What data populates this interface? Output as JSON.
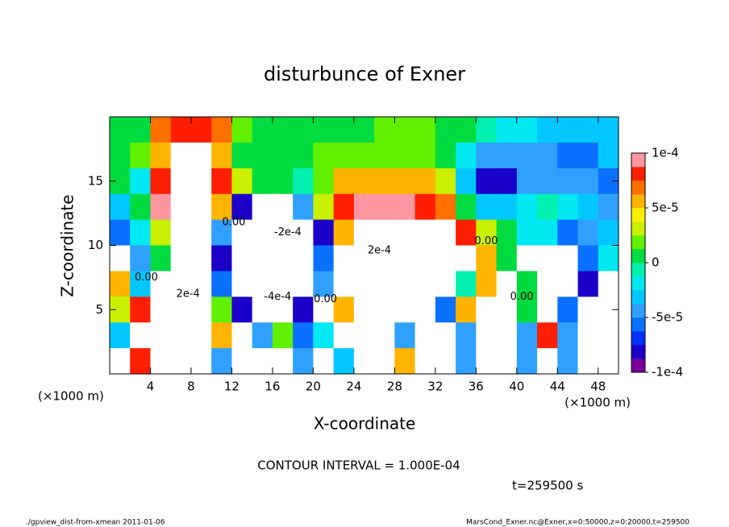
{
  "chart_data": {
    "type": "heatmap",
    "title": "disturbunce of Exner",
    "xlabel": "X-coordinate",
    "ylabel": "Z-coordinate",
    "xunit": "(×1000 m)",
    "yunit": "(×1000 m)",
    "xlim": [
      0,
      50
    ],
    "ylim": [
      0,
      20
    ],
    "xticks": [
      4,
      8,
      12,
      16,
      20,
      24,
      28,
      32,
      36,
      40,
      44,
      48
    ],
    "yticks": [
      5,
      10,
      15
    ],
    "x": [
      1,
      3,
      5,
      7,
      9,
      11,
      13,
      15,
      17,
      19,
      21,
      23,
      25,
      27,
      29,
      31,
      33,
      35,
      37,
      39,
      41,
      43,
      45,
      47,
      49
    ],
    "y": [
      19,
      17,
      15,
      13,
      11,
      9,
      7,
      5,
      3,
      1
    ],
    "values": [
      [
        1e-05,
        1e-05,
        7e-05,
        8e-05,
        8e-05,
        7e-05,
        2e-05,
        1e-05,
        1e-05,
        1e-05,
        1e-05,
        1e-05,
        1e-05,
        2e-05,
        2e-05,
        2e-05,
        1e-05,
        1e-05,
        -1e-05,
        -2e-05,
        -2e-05,
        -3e-05,
        -3e-05,
        -3e-05,
        -3e-05
      ],
      [
        1e-05,
        2e-05,
        6e-05,
        0.0002,
        0.0002,
        6e-05,
        1e-05,
        1e-05,
        1e-05,
        1e-05,
        2e-05,
        2e-05,
        2e-05,
        2e-05,
        2e-05,
        2e-05,
        1e-05,
        -2e-05,
        -4e-05,
        -5e-05,
        -4e-05,
        -4e-05,
        -6e-05,
        -6e-05,
        -3e-05
      ],
      [
        0,
        -2e-05,
        8e-05,
        0.0002,
        0.0002,
        8e-05,
        3e-05,
        1e-05,
        0,
        -1e-05,
        2e-05,
        5e-05,
        6e-05,
        6e-05,
        6e-05,
        5e-05,
        3e-05,
        -3e-05,
        -8e-05,
        -8e-05,
        -5e-05,
        -4e-05,
        -5e-05,
        -5e-05,
        -6e-05
      ],
      [
        -3e-05,
        0,
        9e-05,
        0.0002,
        0.0002,
        5e-05,
        -8e-05,
        -0.0002,
        -0.0002,
        -5e-05,
        3e-05,
        8e-05,
        9e-05,
        9e-05,
        9e-05,
        8e-05,
        7e-05,
        1e-05,
        -3e-05,
        -3e-05,
        -2e-05,
        -1e-05,
        -2e-05,
        -3e-05,
        -4e-05
      ],
      [
        -6e-05,
        -2e-05,
        3e-05,
        0.0002,
        0.0002,
        -5e-05,
        -0.0002,
        -0.0003,
        -0.0003,
        -0.0002,
        -8e-05,
        6e-05,
        0.0002,
        0.0002,
        0.0002,
        0.0002,
        0.0002,
        8e-05,
        3e-05,
        0,
        -2e-05,
        -2e-05,
        -6e-05,
        -4e-05,
        -3e-05
      ],
      [
        0.0002,
        -5e-05,
        0,
        0.0002,
        0.0002,
        -8e-05,
        -0.0003,
        -0.0004,
        -0.0004,
        -0.0003,
        -6e-05,
        0.0002,
        0.0002,
        0.0002,
        0.0002,
        0.0002,
        0.0002,
        0.0002,
        6e-05,
        0,
        0.0002,
        0.0002,
        0.0002,
        -6e-05,
        -2e-05
      ],
      [
        5e-05,
        -3e-05,
        0.0002,
        0.0002,
        0.0002,
        -6e-05,
        -0.0003,
        -0.0004,
        -0.0004,
        -0.0003,
        -4e-05,
        0.0002,
        0.0002,
        0.0002,
        0.0002,
        0.0002,
        0.0002,
        -1e-05,
        6e-05,
        -0.0002,
        0,
        0.0002,
        0.0002,
        -8e-05,
        0.0002
      ],
      [
        3e-05,
        8e-05,
        0.0002,
        0.0002,
        0.0002,
        2e-05,
        -8e-05,
        -0.0002,
        -0.0002,
        -8e-05,
        0.0002,
        6e-05,
        0.0002,
        0.0002,
        0.0002,
        0.0002,
        -6e-05,
        5e-05,
        -0.0002,
        -0.0002,
        0,
        0.0002,
        -6e-05,
        0.0002,
        0.0002
      ],
      [
        -3e-05,
        0.0002,
        0.0002,
        0.0002,
        0.0002,
        6e-05,
        0.0002,
        -5e-05,
        2e-05,
        -6e-05,
        -2e-05,
        0.0002,
        0.0002,
        0.0002,
        -4e-05,
        0.0002,
        0.0002,
        -4e-05,
        -0.0002,
        -0.0002,
        -5e-05,
        8e-05,
        -4e-05,
        0.0002,
        0.0002
      ],
      [
        0.0002,
        8e-05,
        0.0002,
        0.0002,
        0.0002,
        -5e-05,
        0.0002,
        0.0002,
        0.0002,
        -4e-05,
        0.0002,
        -3e-05,
        0.0002,
        0.0002,
        5e-05,
        0.0002,
        0.0002,
        -5e-05,
        -0.0002,
        -0.0002,
        -5e-05,
        0.0002,
        -5e-05,
        0.0002,
        0.0002
      ]
    ],
    "clim": [
      -0.0001,
      0.0001
    ],
    "cticks": [
      {
        "value": 0.0001,
        "label": "1e-4"
      },
      {
        "value": 5e-05,
        "label": "5e-5"
      },
      0,
      {
        "value": -5e-05,
        "label": "-5e-5"
      },
      {
        "value": -0.0001,
        "label": "-1e-4"
      }
    ],
    "colormap": [
      "#7a00a0",
      "#1a00c8",
      "#0030ff",
      "#0a70ff",
      "#30a0ff",
      "#00c8ff",
      "#00e8f0",
      "#00f0b0",
      "#00dc40",
      "#60f000",
      "#c8f000",
      "#fff000",
      "#ffb400",
      "#ff7000",
      "#ff1e00",
      "#ff96a0"
    ],
    "out_of_range_color": "#ffffff",
    "annotations": [
      {
        "text": "0.00",
        "x": 12.2,
        "y": 11.8
      },
      {
        "text": "-2e-4",
        "x": 17.5,
        "y": 11
      },
      {
        "text": "-4e-4",
        "x": 16.5,
        "y": 6
      },
      {
        "text": "2e-4",
        "x": 26.5,
        "y": 9.6
      },
      {
        "text": "0.00",
        "x": 37,
        "y": 10.3
      },
      {
        "text": "0.00",
        "x": 40.5,
        "y": 6
      },
      {
        "text": "0.00",
        "x": 21.2,
        "y": 5.8
      },
      {
        "text": "0.00",
        "x": 3.6,
        "y": 7.5
      },
      {
        "text": "2e-4",
        "x": 7.7,
        "y": 6.2
      }
    ],
    "contour_interval": "CONTOUR INTERVAL = 1.000E-04",
    "time": "t=259500 s",
    "footer_left": "./gpview_dist-from-xmean  2011-01-06",
    "footer_right": "MarsCond_Exner.nc@Exner,x=0:50000,z=0:20000,t=259500"
  }
}
